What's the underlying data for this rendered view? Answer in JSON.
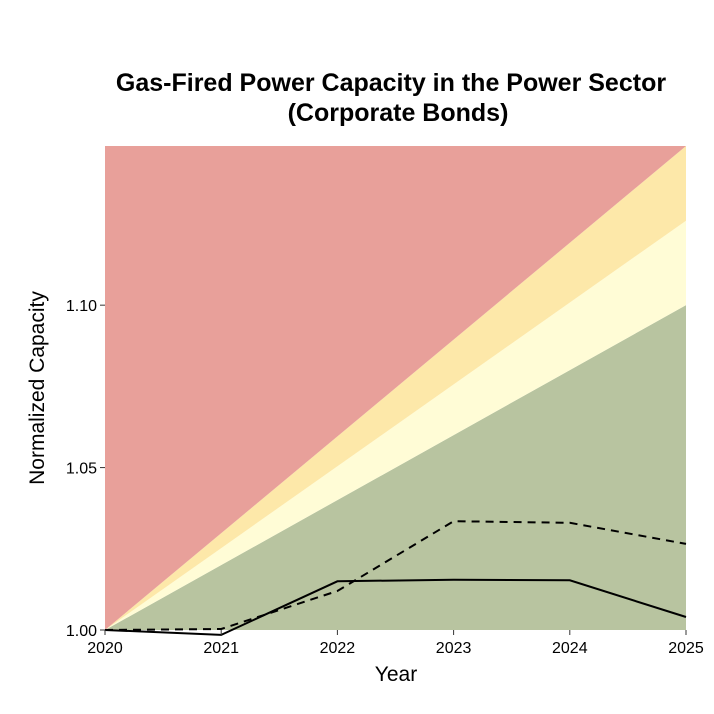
{
  "chart_data": {
    "type": "area",
    "title_lines": [
      "Gas-Fired Power Capacity in the Power Sector",
      "(Corporate Bonds)"
    ],
    "xlabel": "Year",
    "ylabel": "Normalized Capacity",
    "x": [
      2020,
      2021,
      2022,
      2023,
      2024,
      2025
    ],
    "xlim": [
      2020,
      2025
    ],
    "ylim": [
      1.0,
      1.149
    ],
    "x_ticks": [
      "2020",
      "2021",
      "2022",
      "2023",
      "2024",
      "2025"
    ],
    "y_ticks": [
      "1.00",
      "1.05",
      "1.10"
    ],
    "y_tick_values": [
      1.0,
      1.05,
      1.1
    ],
    "grid": false,
    "bands": [
      {
        "color": "#b8c4a0",
        "lower_end": 1.0,
        "upper_end": 1.1
      },
      {
        "color": "#fffcd6",
        "lower_end": 1.1,
        "upper_end": 1.126
      },
      {
        "color": "#fde8a9",
        "lower_end": 1.126,
        "upper_end": 1.149
      },
      {
        "color": "#e8a09a",
        "lower_end": 1.149,
        "upper_end": 1.149
      }
    ],
    "series": [
      {
        "style": "solid",
        "values": [
          1.0,
          0.9985,
          1.015,
          1.0155,
          1.0153,
          1.004
        ]
      },
      {
        "style": "dashed",
        "values": [
          1.0,
          1.0003,
          1.012,
          1.0335,
          1.033,
          1.0265
        ]
      }
    ]
  }
}
